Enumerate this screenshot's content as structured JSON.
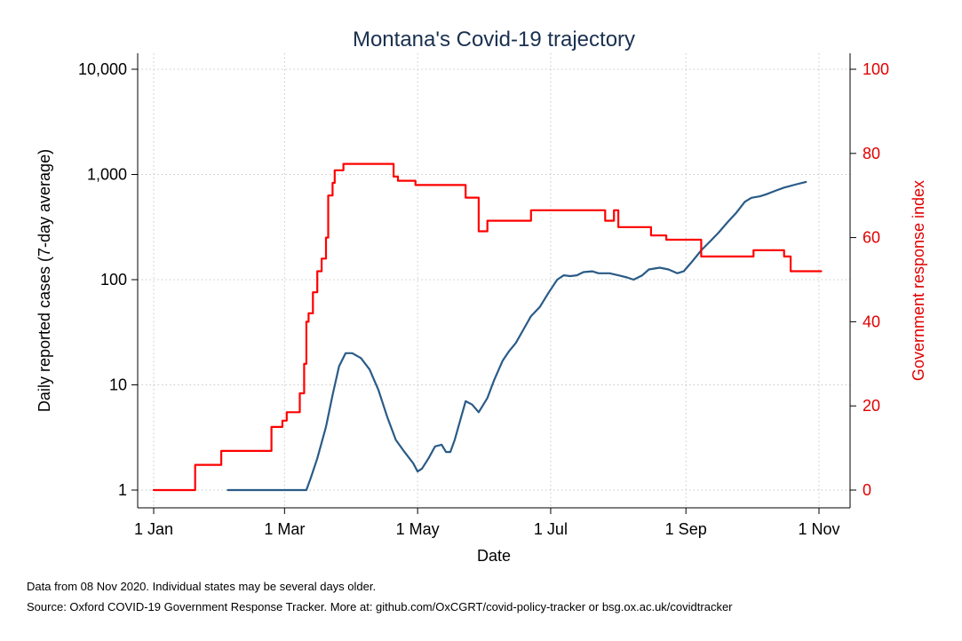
{
  "chart_data": {
    "type": "line",
    "title": "Montana's Covid-19 trajectory",
    "xlabel": "Date",
    "ylabel_left": "Daily reported cases (7-day average)",
    "ylabel_right": "Government response index",
    "x_ticks": [
      "1 Jan",
      "1 Mar",
      "1 May",
      "1 Jul",
      "1 Sep",
      "1 Nov"
    ],
    "x_tick_days": [
      1,
      61,
      122,
      183,
      245,
      306
    ],
    "x_range_days": [
      1,
      313
    ],
    "y_left": {
      "scale": "log",
      "range": [
        1,
        10000
      ],
      "ticks": [
        1,
        10,
        100,
        1000,
        10000
      ],
      "tick_labels": [
        "1",
        "10",
        "100",
        "1,000",
        "10,000"
      ]
    },
    "y_right": {
      "scale": "linear",
      "range": [
        0,
        100
      ],
      "ticks": [
        0,
        20,
        40,
        60,
        80,
        100
      ],
      "tick_labels": [
        "0",
        "20",
        "40",
        "60",
        "80",
        "100"
      ]
    },
    "grid": true,
    "series": [
      {
        "axis": "left",
        "color": "#2a5b87",
        "points": [
          [
            35,
            1
          ],
          [
            65,
            1
          ],
          [
            71,
            1
          ],
          [
            73,
            1.3
          ],
          [
            76,
            2
          ],
          [
            80,
            4
          ],
          [
            83,
            8
          ],
          [
            86,
            15
          ],
          [
            89,
            20
          ],
          [
            92,
            20
          ],
          [
            96,
            18
          ],
          [
            100,
            14
          ],
          [
            104,
            9
          ],
          [
            108,
            5
          ],
          [
            112,
            3
          ],
          [
            116,
            2.3
          ],
          [
            120,
            1.8
          ],
          [
            122,
            1.5
          ],
          [
            124,
            1.6
          ],
          [
            127,
            2
          ],
          [
            130,
            2.6
          ],
          [
            133,
            2.7
          ],
          [
            135,
            2.3
          ],
          [
            137,
            2.3
          ],
          [
            139,
            3
          ],
          [
            142,
            5
          ],
          [
            144,
            7
          ],
          [
            147,
            6.5
          ],
          [
            150,
            5.5
          ],
          [
            154,
            7.5
          ],
          [
            157,
            11
          ],
          [
            161,
            17
          ],
          [
            164,
            21
          ],
          [
            167,
            25
          ],
          [
            171,
            35
          ],
          [
            174,
            45
          ],
          [
            178,
            55
          ],
          [
            182,
            75
          ],
          [
            186,
            100
          ],
          [
            189,
            110
          ],
          [
            192,
            108
          ],
          [
            195,
            110
          ],
          [
            198,
            118
          ],
          [
            202,
            120
          ],
          [
            205,
            115
          ],
          [
            210,
            115
          ],
          [
            214,
            110
          ],
          [
            218,
            105
          ],
          [
            221,
            100
          ],
          [
            225,
            110
          ],
          [
            228,
            125
          ],
          [
            233,
            130
          ],
          [
            237,
            125
          ],
          [
            241,
            115
          ],
          [
            244,
            120
          ],
          [
            248,
            150
          ],
          [
            252,
            190
          ],
          [
            256,
            230
          ],
          [
            260,
            280
          ],
          [
            264,
            350
          ],
          [
            268,
            430
          ],
          [
            272,
            550
          ],
          [
            275,
            600
          ],
          [
            279,
            620
          ],
          [
            282,
            650
          ],
          [
            286,
            700
          ],
          [
            290,
            750
          ],
          [
            295,
            800
          ],
          [
            300,
            850
          ]
        ]
      },
      {
        "axis": "right",
        "color": "#ff0000",
        "points": [
          [
            1,
            0
          ],
          [
            20,
            0
          ],
          [
            20,
            6
          ],
          [
            32,
            6
          ],
          [
            32,
            9.3
          ],
          [
            55,
            9.3
          ],
          [
            55,
            15
          ],
          [
            60,
            15
          ],
          [
            60,
            16.5
          ],
          [
            62,
            16.5
          ],
          [
            62,
            18.5
          ],
          [
            68,
            18.5
          ],
          [
            68,
            23
          ],
          [
            70,
            23
          ],
          [
            70,
            30
          ],
          [
            71,
            30
          ],
          [
            71,
            40
          ],
          [
            72,
            40
          ],
          [
            72,
            42
          ],
          [
            74,
            42
          ],
          [
            74,
            47
          ],
          [
            76,
            47
          ],
          [
            76,
            52
          ],
          [
            78,
            52
          ],
          [
            78,
            55
          ],
          [
            80,
            55
          ],
          [
            80,
            60
          ],
          [
            81,
            60
          ],
          [
            81,
            70
          ],
          [
            83,
            70
          ],
          [
            83,
            73
          ],
          [
            84,
            73
          ],
          [
            84,
            76
          ],
          [
            88,
            76
          ],
          [
            88,
            77.5
          ],
          [
            111,
            77.5
          ],
          [
            111,
            74.5
          ],
          [
            113,
            74.5
          ],
          [
            113,
            73.5
          ],
          [
            121,
            73.5
          ],
          [
            121,
            72.5
          ],
          [
            144,
            72.5
          ],
          [
            144,
            69.5
          ],
          [
            150,
            69.5
          ],
          [
            150,
            61.5
          ],
          [
            154,
            61.5
          ],
          [
            154,
            64
          ],
          [
            174,
            64
          ],
          [
            174,
            66.5
          ],
          [
            208,
            66.5
          ],
          [
            208,
            64
          ],
          [
            212,
            64
          ],
          [
            212,
            66.5
          ],
          [
            214,
            66.5
          ],
          [
            214,
            62.5
          ],
          [
            229,
            62.5
          ],
          [
            229,
            60.5
          ],
          [
            236,
            60.5
          ],
          [
            236,
            59.5
          ],
          [
            252,
            59.5
          ],
          [
            252,
            55.5
          ],
          [
            276,
            55.5
          ],
          [
            276,
            57
          ],
          [
            290,
            57
          ],
          [
            290,
            55.5
          ],
          [
            293,
            55.5
          ],
          [
            293,
            52
          ],
          [
            307,
            52
          ]
        ]
      }
    ]
  },
  "footnotes": {
    "line1": "Data from 08 Nov 2020. Individual states may be several days older.",
    "line2": "Source: Oxford COVID-19 Government Response Tracker. More at: github.com/OxCGRT/covid-policy-tracker or bsg.ox.ac.uk/covidtracker"
  }
}
